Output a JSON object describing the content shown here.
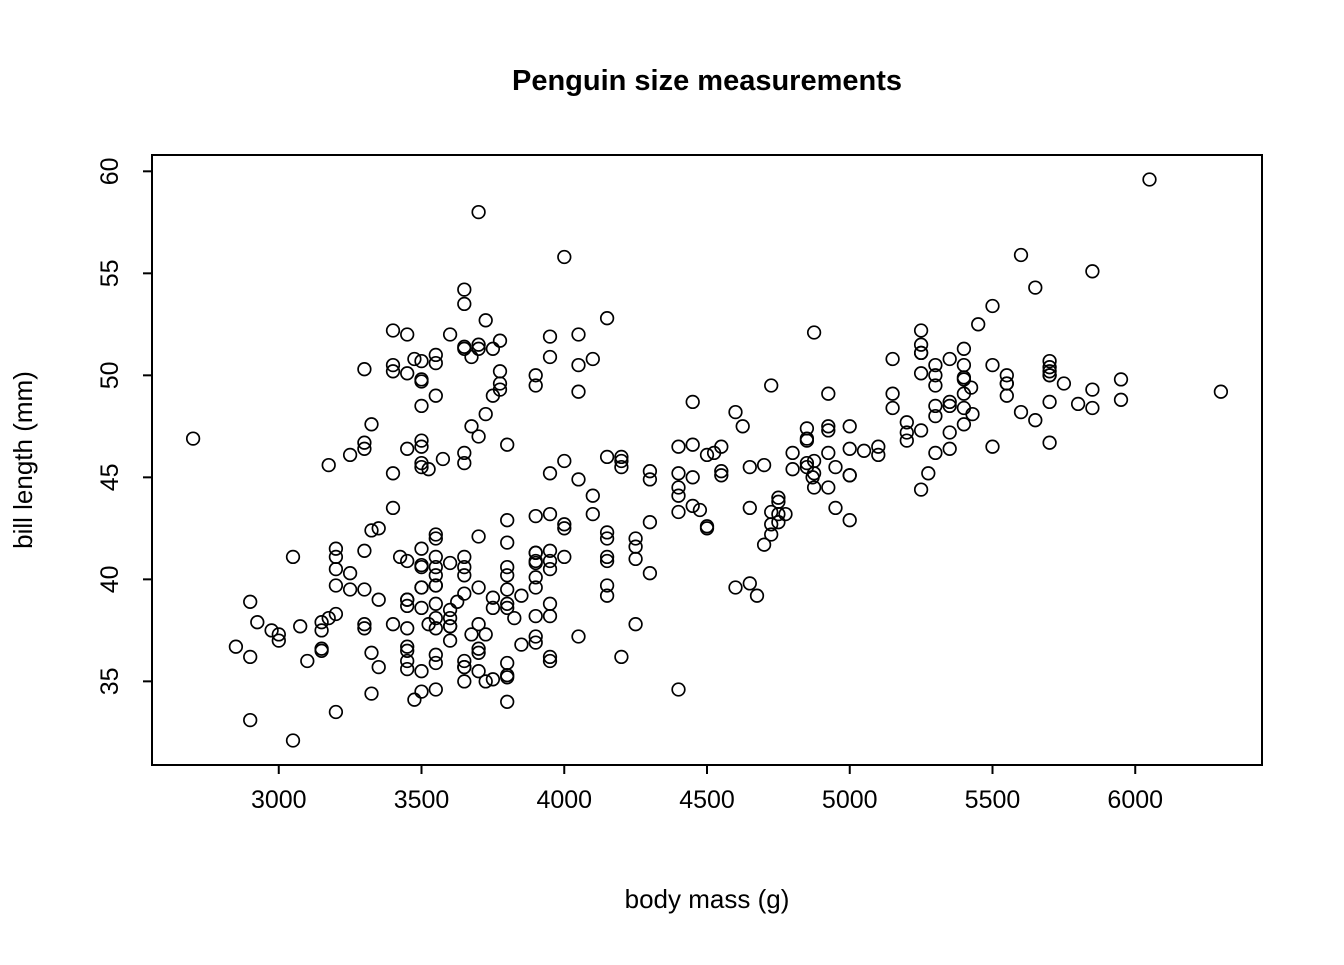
{
  "chart_data": {
    "type": "scatter",
    "title": "Penguin size measurements",
    "xlabel": "body mass (g)",
    "ylabel": "bill length (mm)",
    "xlim": [
      2556,
      6444
    ],
    "ylim": [
      30.9,
      60.8
    ],
    "x_ticks": [
      3000,
      3500,
      4000,
      4500,
      5000,
      5500,
      6000
    ],
    "y_ticks": [
      35,
      40,
      45,
      50,
      55,
      60
    ],
    "grid": false,
    "legend": "none",
    "marker": "open-circle",
    "colors": {
      "point": "#000000",
      "background": "#ffffff"
    },
    "points": [
      [
        3750,
        39.1
      ],
      [
        3800,
        39.5
      ],
      [
        3250,
        40.3
      ],
      [
        3450,
        36.7
      ],
      [
        3650,
        39.3
      ],
      [
        3625,
        38.9
      ],
      [
        4675,
        39.2
      ],
      [
        3475,
        34.1
      ],
      [
        4250,
        42.0
      ],
      [
        3300,
        37.8
      ],
      [
        3700,
        37.8
      ],
      [
        3200,
        41.1
      ],
      [
        3800,
        38.6
      ],
      [
        4400,
        34.6
      ],
      [
        3700,
        36.6
      ],
      [
        3450,
        38.7
      ],
      [
        4500,
        42.5
      ],
      [
        3325,
        34.4
      ],
      [
        4200,
        46.0
      ],
      [
        3400,
        37.8
      ],
      [
        3600,
        37.7
      ],
      [
        3800,
        35.9
      ],
      [
        3950,
        38.2
      ],
      [
        3800,
        38.8
      ],
      [
        3800,
        35.3
      ],
      [
        3550,
        40.6
      ],
      [
        3200,
        40.5
      ],
      [
        3150,
        37.9
      ],
      [
        3950,
        40.5
      ],
      [
        3250,
        39.5
      ],
      [
        3900,
        37.2
      ],
      [
        3300,
        39.5
      ],
      [
        3900,
        40.9
      ],
      [
        3325,
        36.4
      ],
      [
        4150,
        39.2
      ],
      [
        3950,
        38.8
      ],
      [
        3550,
        42.2
      ],
      [
        3300,
        37.6
      ],
      [
        4650,
        39.8
      ],
      [
        3150,
        36.5
      ],
      [
        3900,
        40.8
      ],
      [
        3100,
        36.0
      ],
      [
        4400,
        44.1
      ],
      [
        3000,
        37.0
      ],
      [
        4600,
        39.6
      ],
      [
        3425,
        41.1
      ],
      [
        2975,
        37.5
      ],
      [
        3450,
        36.0
      ],
      [
        4150,
        42.3
      ],
      [
        3500,
        39.6
      ],
      [
        3900,
        40.1
      ],
      [
        3650,
        35.0
      ],
      [
        3550,
        42.0
      ],
      [
        3500,
        34.5
      ],
      [
        3300,
        41.4
      ],
      [
        3450,
        39.0
      ],
      [
        3500,
        40.6
      ],
      [
        3450,
        36.5
      ],
      [
        3450,
        37.6
      ],
      [
        3650,
        35.7
      ],
      [
        3900,
        41.3
      ],
      [
        3550,
        37.6
      ],
      [
        4150,
        41.1
      ],
      [
        3700,
        36.4
      ],
      [
        4250,
        41.6
      ],
      [
        3700,
        35.5
      ],
      [
        4000,
        41.1
      ],
      [
        3550,
        35.9
      ],
      [
        3800,
        41.8
      ],
      [
        3200,
        33.5
      ],
      [
        4150,
        39.7
      ],
      [
        3700,
        39.6
      ],
      [
        4000,
        45.8
      ],
      [
        3500,
        35.5
      ],
      [
        4300,
        42.8
      ],
      [
        3450,
        40.9
      ],
      [
        4050,
        37.2
      ],
      [
        2900,
        36.2
      ],
      [
        3700,
        42.1
      ],
      [
        3550,
        34.6
      ],
      [
        3800,
        42.9
      ],
      [
        2850,
        36.7
      ],
      [
        3750,
        35.1
      ],
      [
        3000,
        37.3
      ],
      [
        3900,
        41.3
      ],
      [
        3550,
        36.3
      ],
      [
        3900,
        36.9
      ],
      [
        3200,
        38.3
      ],
      [
        2900,
        38.9
      ],
      [
        3350,
        35.7
      ],
      [
        3550,
        41.1
      ],
      [
        3800,
        34.0
      ],
      [
        3500,
        39.6
      ],
      [
        3950,
        36.2
      ],
      [
        3600,
        40.8
      ],
      [
        3550,
        38.1
      ],
      [
        4300,
        40.3
      ],
      [
        2900,
        33.1
      ],
      [
        4100,
        43.2
      ],
      [
        3725,
        35.0
      ],
      [
        4250,
        41.0
      ],
      [
        3075,
        37.7
      ],
      [
        4250,
        37.8
      ],
      [
        2925,
        37.9
      ],
      [
        3550,
        39.7
      ],
      [
        3750,
        38.6
      ],
      [
        3900,
        38.2
      ],
      [
        3175,
        38.1
      ],
      [
        4775,
        43.2
      ],
      [
        3825,
        38.1
      ],
      [
        4700,
        45.6
      ],
      [
        3200,
        39.7
      ],
      [
        4725,
        42.2
      ],
      [
        3900,
        39.6
      ],
      [
        4725,
        42.7
      ],
      [
        3500,
        38.6
      ],
      [
        3725,
        37.3
      ],
      [
        3650,
        35.7
      ],
      [
        3650,
        41.1
      ],
      [
        4200,
        36.2
      ],
      [
        3600,
        37.7
      ],
      [
        3800,
        40.2
      ],
      [
        3950,
        41.4
      ],
      [
        3800,
        35.2
      ],
      [
        3800,
        40.6
      ],
      [
        3550,
        38.8
      ],
      [
        3200,
        41.5
      ],
      [
        3350,
        39.0
      ],
      [
        4100,
        44.1
      ],
      [
        3600,
        38.5
      ],
      [
        3900,
        43.1
      ],
      [
        3850,
        36.8
      ],
      [
        3150,
        37.5
      ],
      [
        3600,
        38.1
      ],
      [
        3050,
        41.1
      ],
      [
        3450,
        35.6
      ],
      [
        3550,
        40.2
      ],
      [
        3600,
        37.0
      ],
      [
        3550,
        39.7
      ],
      [
        3650,
        40.2
      ],
      [
        3650,
        40.6
      ],
      [
        3050,
        32.1
      ],
      [
        3500,
        40.7
      ],
      [
        3675,
        37.3
      ],
      [
        3450,
        39.0
      ],
      [
        3850,
        39.2
      ],
      [
        3150,
        36.6
      ],
      [
        3650,
        36.0
      ],
      [
        3525,
        37.8
      ],
      [
        3950,
        36.0
      ],
      [
        3500,
        41.5
      ],
      [
        4500,
        46.1
      ],
      [
        5700,
        50.0
      ],
      [
        4450,
        48.7
      ],
      [
        5700,
        50.0
      ],
      [
        5400,
        47.6
      ],
      [
        4550,
        46.5
      ],
      [
        4800,
        45.4
      ],
      [
        5700,
        46.7
      ],
      [
        4400,
        43.3
      ],
      [
        5200,
        46.8
      ],
      [
        4150,
        40.9
      ],
      [
        5550,
        49.0
      ],
      [
        4650,
        45.5
      ],
      [
        5850,
        48.4
      ],
      [
        4200,
        45.8
      ],
      [
        5850,
        49.3
      ],
      [
        4150,
        42.0
      ],
      [
        6300,
        49.2
      ],
      [
        4800,
        46.2
      ],
      [
        5350,
        48.7
      ],
      [
        5700,
        50.2
      ],
      [
        5000,
        45.1
      ],
      [
        4400,
        46.5
      ],
      [
        5050,
        46.3
      ],
      [
        5000,
        42.9
      ],
      [
        5100,
        46.1
      ],
      [
        4400,
        44.5
      ],
      [
        5650,
        47.8
      ],
      [
        4600,
        48.2
      ],
      [
        5550,
        50.0
      ],
      [
        5250,
        47.3
      ],
      [
        4750,
        42.8
      ],
      [
        5000,
        45.1
      ],
      [
        6050,
        59.6
      ],
      [
        5400,
        49.1
      ],
      [
        5400,
        48.4
      ],
      [
        4500,
        42.6
      ],
      [
        5250,
        44.4
      ],
      [
        4750,
        44.0
      ],
      [
        5700,
        48.7
      ],
      [
        4000,
        42.7
      ],
      [
        5750,
        49.6
      ],
      [
        4550,
        45.3
      ],
      [
        5550,
        49.6
      ],
      [
        5500,
        50.5
      ],
      [
        4450,
        43.6
      ],
      [
        4200,
        45.5
      ],
      [
        5300,
        50.5
      ],
      [
        4050,
        44.9
      ],
      [
        4400,
        45.2
      ],
      [
        4450,
        46.6
      ],
      [
        5350,
        48.5
      ],
      [
        4550,
        45.1
      ],
      [
        5250,
        50.1
      ],
      [
        5500,
        46.5
      ],
      [
        4450,
        45.0
      ],
      [
        4750,
        43.8
      ],
      [
        4950,
        45.5
      ],
      [
        4750,
        43.2
      ],
      [
        5700,
        50.4
      ],
      [
        4300,
        45.3
      ],
      [
        4925,
        46.2
      ],
      [
        4850,
        45.7
      ],
      [
        5650,
        54.3
      ],
      [
        4875,
        45.8
      ],
      [
        5400,
        49.8
      ],
      [
        4525,
        46.2
      ],
      [
        4725,
        49.5
      ],
      [
        4950,
        43.5
      ],
      [
        5700,
        50.7
      ],
      [
        5200,
        47.7
      ],
      [
        5350,
        46.4
      ],
      [
        5600,
        48.2
      ],
      [
        5100,
        46.5
      ],
      [
        5000,
        46.4
      ],
      [
        5800,
        48.6
      ],
      [
        5000,
        47.5
      ],
      [
        5250,
        51.1
      ],
      [
        4875,
        45.2
      ],
      [
        5275,
        45.2
      ],
      [
        4925,
        49.1
      ],
      [
        5450,
        52.5
      ],
      [
        4850,
        47.4
      ],
      [
        5300,
        50.0
      ],
      [
        4300,
        44.9
      ],
      [
        5150,
        50.8
      ],
      [
        4475,
        43.4
      ],
      [
        5400,
        51.3
      ],
      [
        4925,
        47.5
      ],
      [
        4875,
        52.1
      ],
      [
        4625,
        47.5
      ],
      [
        5250,
        52.2
      ],
      [
        4850,
        45.5
      ],
      [
        5300,
        49.5
      ],
      [
        4925,
        44.5
      ],
      [
        5350,
        50.8
      ],
      [
        5425,
        49.4
      ],
      [
        4850,
        46.9
      ],
      [
        5150,
        48.4
      ],
      [
        5250,
        51.1
      ],
      [
        5300,
        48.5
      ],
      [
        5600,
        55.9
      ],
      [
        5200,
        47.2
      ],
      [
        5150,
        49.1
      ],
      [
        4925,
        47.3
      ],
      [
        4850,
        46.8
      ],
      [
        4700,
        41.7
      ],
      [
        5500,
        53.4
      ],
      [
        4725,
        43.3
      ],
      [
        5430,
        48.1
      ],
      [
        5400,
        50.5
      ],
      [
        5950,
        49.8
      ],
      [
        4650,
        43.5
      ],
      [
        5250,
        51.5
      ],
      [
        5300,
        46.2
      ],
      [
        5850,
        55.1
      ],
      [
        4875,
        44.5
      ],
      [
        5950,
        48.8
      ],
      [
        5350,
        47.2
      ],
      [
        5400,
        49.9
      ],
      [
        4870,
        45.0
      ],
      [
        5300,
        48.0
      ],
      [
        5550,
        49.6
      ],
      [
        3500,
        46.5
      ],
      [
        3900,
        50.0
      ],
      [
        3650,
        51.3
      ],
      [
        3525,
        45.4
      ],
      [
        3725,
        52.7
      ],
      [
        3950,
        45.2
      ],
      [
        3250,
        46.1
      ],
      [
        3750,
        51.3
      ],
      [
        4150,
        46.0
      ],
      [
        3700,
        51.3
      ],
      [
        3800,
        46.6
      ],
      [
        3775,
        51.7
      ],
      [
        3700,
        47.0
      ],
      [
        4050,
        52.0
      ],
      [
        3575,
        45.9
      ],
      [
        4050,
        50.5
      ],
      [
        3300,
        50.3
      ],
      [
        3700,
        58.0
      ],
      [
        3450,
        46.4
      ],
      [
        4050,
        49.2
      ],
      [
        3325,
        42.4
      ],
      [
        3500,
        48.5
      ],
      [
        3950,
        43.2
      ],
      [
        3550,
        50.6
      ],
      [
        3300,
        46.7
      ],
      [
        3450,
        52.0
      ],
      [
        3400,
        50.5
      ],
      [
        3900,
        49.5
      ],
      [
        3300,
        46.4
      ],
      [
        4150,
        52.8
      ],
      [
        3950,
        40.9
      ],
      [
        3650,
        54.2
      ],
      [
        3350,
        42.5
      ],
      [
        3550,
        51.0
      ],
      [
        3500,
        49.7
      ],
      [
        3675,
        47.5
      ],
      [
        3325,
        47.6
      ],
      [
        3600,
        52.0
      ],
      [
        2700,
        46.9
      ],
      [
        3650,
        53.5
      ],
      [
        3550,
        49.0
      ],
      [
        3650,
        46.2
      ],
      [
        3950,
        50.9
      ],
      [
        3500,
        45.5
      ],
      [
        3675,
        50.9
      ],
      [
        3475,
        50.8
      ],
      [
        3450,
        50.1
      ],
      [
        3750,
        49.0
      ],
      [
        3700,
        51.5
      ],
      [
        3500,
        49.8
      ],
      [
        3725,
        48.1
      ],
      [
        3650,
        51.4
      ],
      [
        3650,
        45.7
      ],
      [
        3500,
        50.7
      ],
      [
        4000,
        42.5
      ],
      [
        3400,
        52.2
      ],
      [
        3400,
        45.2
      ],
      [
        3775,
        49.3
      ],
      [
        3400,
        50.2
      ],
      [
        3175,
        45.6
      ],
      [
        3950,
        51.9
      ],
      [
        3500,
        46.8
      ],
      [
        3500,
        45.7
      ],
      [
        4000,
        55.8
      ],
      [
        3400,
        43.5
      ],
      [
        3775,
        49.6
      ],
      [
        4100,
        50.8
      ],
      [
        3775,
        50.2
      ]
    ]
  }
}
